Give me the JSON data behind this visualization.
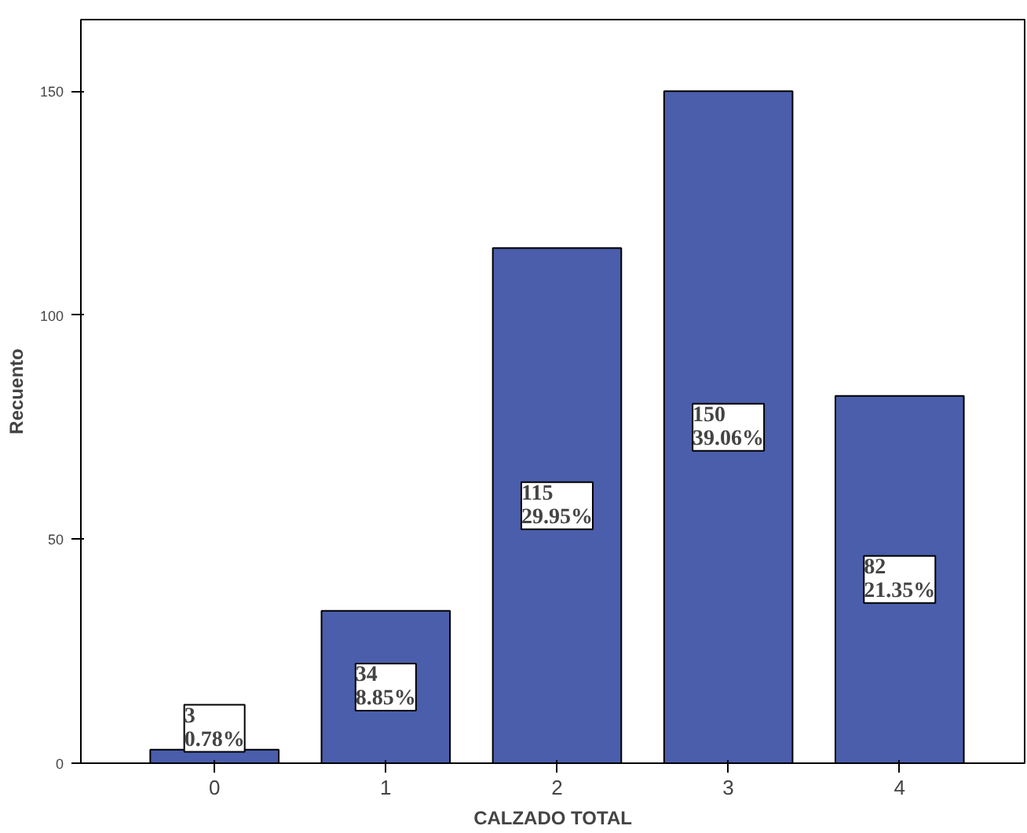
{
  "chart_data": {
    "type": "bar",
    "xlabel": "CALZADO TOTAL",
    "ylabel": "Recuento",
    "categories": [
      "0",
      "1",
      "2",
      "3",
      "4"
    ],
    "values": [
      3,
      34,
      115,
      150,
      82
    ],
    "color": "#4a5eab",
    "value_labels": [
      "3\n0.78%",
      "34\n8.85%",
      "115\n29.95%",
      "150\n39.06%",
      "82\n21.35%"
    ],
    "ylim": [
      0,
      166
    ],
    "yticks": [
      0,
      50,
      100,
      150
    ],
    "grid": false
  }
}
